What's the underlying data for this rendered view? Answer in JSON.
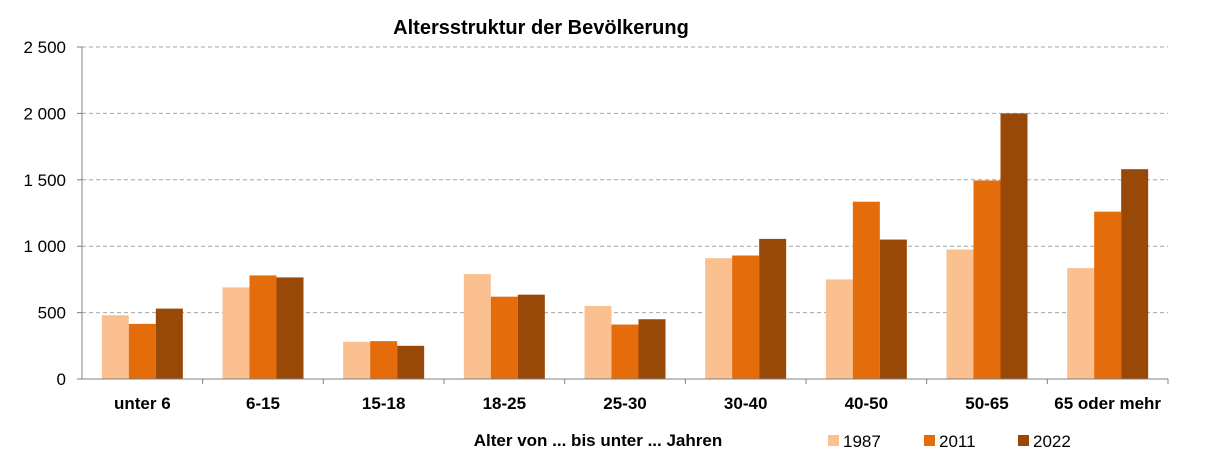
{
  "chart_data": {
    "type": "bar",
    "title": "Altersstruktur der Bevölkerung",
    "xlabel": "Alter von ... bis unter ... Jahren",
    "ylabel": "",
    "ylim": [
      0,
      2500
    ],
    "yticks": [
      0,
      500,
      1000,
      1500,
      2000,
      2500
    ],
    "ytick_labels": [
      "0",
      "500",
      "1 000",
      "1 500",
      "2 000",
      "2 500"
    ],
    "grid": true,
    "legend_position": "bottom-right",
    "categories": [
      "unter 6",
      "6-15",
      "15-18",
      "18-25",
      "25-30",
      "30-40",
      "40-50",
      "50-65",
      "65 oder mehr"
    ],
    "series": [
      {
        "name": "1987",
        "color": "#fac090",
        "values": [
          480,
          690,
          280,
          790,
          550,
          910,
          750,
          975,
          835
        ]
      },
      {
        "name": "2011",
        "color": "#e46c0a",
        "values": [
          415,
          780,
          285,
          620,
          410,
          930,
          1335,
          1495,
          1260
        ]
      },
      {
        "name": "2022",
        "color": "#984807",
        "values": [
          530,
          765,
          250,
          635,
          450,
          1055,
          1050,
          2000,
          1580
        ]
      }
    ]
  }
}
